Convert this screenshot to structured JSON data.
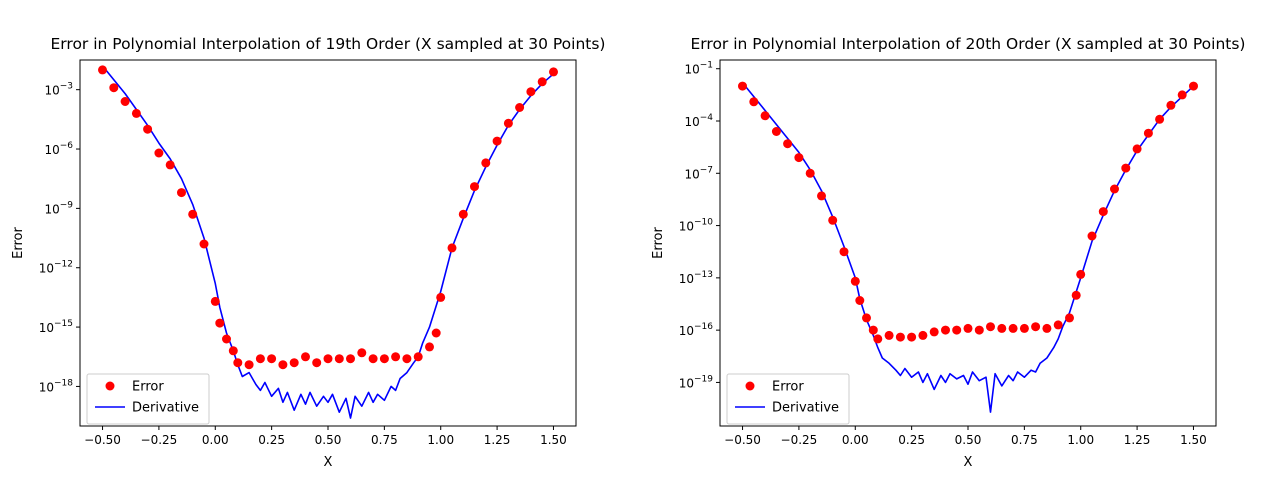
{
  "chart_data": [
    {
      "type": "scatter",
      "title": "Error in Polynomial Interpolation of 19th Order (X sampled at 30 Points)",
      "xlabel": "X",
      "ylabel": "Error",
      "yscale": "log",
      "xlim": [
        -0.6,
        1.6
      ],
      "ylim_log10": [
        -20,
        -1.5
      ],
      "xticks": [
        "−0.50",
        "−0.25",
        "0.00",
        "0.25",
        "0.50",
        "0.75",
        "1.00",
        "1.25",
        "1.50"
      ],
      "yticks": [
        {
          "base": "10",
          "exp": "−3",
          "log": -3
        },
        {
          "base": "10",
          "exp": "−6",
          "log": -6
        },
        {
          "base": "10",
          "exp": "−9",
          "log": -9
        },
        {
          "base": "10",
          "exp": "−12",
          "log": -12
        },
        {
          "base": "10",
          "exp": "−15",
          "log": -15
        },
        {
          "base": "10",
          "exp": "−18",
          "log": -18
        }
      ],
      "legend": {
        "position": "lower-left",
        "entries": [
          "Error",
          "Derivative"
        ]
      },
      "series": [
        {
          "name": "Error",
          "marker": "circle",
          "color": "#ff0000",
          "x": [
            -0.5,
            -0.45,
            -0.4,
            -0.35,
            -0.3,
            -0.25,
            -0.2,
            -0.15,
            -0.1,
            -0.05,
            0.0,
            0.02,
            0.05,
            0.08,
            0.1,
            0.15,
            0.2,
            0.25,
            0.3,
            0.35,
            0.4,
            0.45,
            0.5,
            0.55,
            0.6,
            0.65,
            0.7,
            0.75,
            0.8,
            0.85,
            0.9,
            0.95,
            0.98,
            1.0,
            1.05,
            1.1,
            1.15,
            1.2,
            1.25,
            1.3,
            1.35,
            1.4,
            1.45,
            1.5
          ],
          "log10_y": [
            -2.0,
            -2.9,
            -3.6,
            -4.2,
            -5.0,
            -6.2,
            -6.8,
            -8.2,
            -9.3,
            -10.8,
            -13.7,
            -14.8,
            -15.6,
            -16.2,
            -16.8,
            -16.9,
            -16.6,
            -16.6,
            -16.9,
            -16.8,
            -16.5,
            -16.8,
            -16.6,
            -16.6,
            -16.6,
            -16.3,
            -16.6,
            -16.6,
            -16.5,
            -16.6,
            -16.5,
            -16.0,
            -15.3,
            -13.5,
            -11.0,
            -9.3,
            -7.9,
            -6.7,
            -5.6,
            -4.7,
            -3.9,
            -3.1,
            -2.6,
            -2.1
          ]
        },
        {
          "name": "Derivative",
          "marker": "line",
          "color": "#0000ff",
          "x": [
            -0.5,
            -0.45,
            -0.4,
            -0.35,
            -0.3,
            -0.25,
            -0.2,
            -0.15,
            -0.1,
            -0.05,
            0.0,
            0.02,
            0.05,
            0.08,
            0.1,
            0.12,
            0.15,
            0.18,
            0.2,
            0.22,
            0.25,
            0.28,
            0.3,
            0.32,
            0.35,
            0.38,
            0.4,
            0.42,
            0.45,
            0.48,
            0.5,
            0.52,
            0.55,
            0.58,
            0.6,
            0.62,
            0.65,
            0.68,
            0.7,
            0.72,
            0.75,
            0.78,
            0.8,
            0.82,
            0.85,
            0.88,
            0.9,
            0.92,
            0.95,
            1.0,
            1.05,
            1.1,
            1.15,
            1.2,
            1.25,
            1.3,
            1.35,
            1.4,
            1.45,
            1.5
          ],
          "log10_y": [
            -1.8,
            -2.5,
            -3.2,
            -4.0,
            -4.8,
            -5.7,
            -6.5,
            -7.5,
            -8.8,
            -10.5,
            -12.8,
            -14.0,
            -15.3,
            -16.2,
            -16.9,
            -17.5,
            -17.3,
            -17.9,
            -18.2,
            -17.8,
            -18.5,
            -18.1,
            -18.8,
            -18.3,
            -19.2,
            -18.4,
            -18.9,
            -18.3,
            -19.0,
            -18.5,
            -18.8,
            -18.4,
            -19.3,
            -18.6,
            -19.6,
            -18.5,
            -19.0,
            -18.3,
            -18.8,
            -18.4,
            -18.7,
            -18.0,
            -18.2,
            -17.6,
            -17.3,
            -16.8,
            -16.5,
            -15.8,
            -15.0,
            -13.2,
            -11.0,
            -9.5,
            -8.1,
            -6.9,
            -5.8,
            -4.8,
            -4.0,
            -3.3,
            -2.7,
            -2.2
          ]
        }
      ]
    },
    {
      "type": "scatter",
      "title": "Error in Polynomial Interpolation of 20th Order (X sampled at 30 Points)",
      "xlabel": "X",
      "ylabel": "Error",
      "yscale": "log",
      "xlim": [
        -0.6,
        1.6
      ],
      "ylim_log10": [
        -21.5,
        -0.5
      ],
      "xticks": [
        "−0.50",
        "−0.25",
        "0.00",
        "0.25",
        "0.50",
        "0.75",
        "1.00",
        "1.25",
        "1.50"
      ],
      "yticks": [
        {
          "base": "10",
          "exp": "−1",
          "log": -1
        },
        {
          "base": "10",
          "exp": "−4",
          "log": -4
        },
        {
          "base": "10",
          "exp": "−7",
          "log": -7
        },
        {
          "base": "10",
          "exp": "−10",
          "log": -10
        },
        {
          "base": "10",
          "exp": "−13",
          "log": -13
        },
        {
          "base": "10",
          "exp": "−16",
          "log": -16
        },
        {
          "base": "10",
          "exp": "−19",
          "log": -19
        }
      ],
      "legend": {
        "position": "lower-left",
        "entries": [
          "Error",
          "Derivative"
        ]
      },
      "series": [
        {
          "name": "Error",
          "marker": "circle",
          "color": "#ff0000",
          "x": [
            -0.5,
            -0.45,
            -0.4,
            -0.35,
            -0.3,
            -0.25,
            -0.2,
            -0.15,
            -0.1,
            -0.05,
            0.0,
            0.02,
            0.05,
            0.08,
            0.1,
            0.15,
            0.2,
            0.25,
            0.3,
            0.35,
            0.4,
            0.45,
            0.5,
            0.55,
            0.6,
            0.65,
            0.7,
            0.75,
            0.8,
            0.85,
            0.9,
            0.95,
            0.98,
            1.0,
            1.05,
            1.1,
            1.15,
            1.2,
            1.25,
            1.3,
            1.35,
            1.4,
            1.45,
            1.5
          ],
          "log10_y": [
            -2.0,
            -2.9,
            -3.7,
            -4.6,
            -5.3,
            -6.1,
            -7.0,
            -8.3,
            -9.7,
            -11.5,
            -13.2,
            -14.3,
            -15.3,
            -16.0,
            -16.5,
            -16.3,
            -16.4,
            -16.4,
            -16.3,
            -16.1,
            -16.0,
            -16.0,
            -15.9,
            -16.0,
            -15.8,
            -15.9,
            -15.9,
            -15.9,
            -15.8,
            -15.9,
            -15.7,
            -15.3,
            -14.0,
            -12.8,
            -10.6,
            -9.2,
            -7.9,
            -6.7,
            -5.6,
            -4.7,
            -3.9,
            -3.1,
            -2.5,
            -2.0
          ]
        },
        {
          "name": "Derivative",
          "marker": "line",
          "color": "#0000ff",
          "x": [
            -0.5,
            -0.45,
            -0.4,
            -0.35,
            -0.3,
            -0.25,
            -0.2,
            -0.15,
            -0.1,
            -0.05,
            0.0,
            0.02,
            0.05,
            0.08,
            0.1,
            0.12,
            0.15,
            0.18,
            0.2,
            0.22,
            0.25,
            0.28,
            0.3,
            0.32,
            0.35,
            0.38,
            0.4,
            0.42,
            0.45,
            0.48,
            0.5,
            0.52,
            0.55,
            0.58,
            0.6,
            0.62,
            0.65,
            0.68,
            0.7,
            0.72,
            0.75,
            0.78,
            0.8,
            0.82,
            0.85,
            0.88,
            0.9,
            0.92,
            0.95,
            1.0,
            1.05,
            1.1,
            1.15,
            1.2,
            1.25,
            1.3,
            1.35,
            1.4,
            1.45,
            1.5
          ],
          "log10_y": [
            -1.8,
            -2.6,
            -3.4,
            -4.2,
            -5.0,
            -5.8,
            -6.8,
            -8.0,
            -9.5,
            -11.2,
            -13.0,
            -14.2,
            -15.4,
            -16.3,
            -17.0,
            -17.6,
            -17.9,
            -18.3,
            -18.6,
            -18.2,
            -18.7,
            -18.4,
            -19.0,
            -18.5,
            -19.4,
            -18.6,
            -19.0,
            -18.5,
            -18.8,
            -18.6,
            -19.1,
            -18.4,
            -18.9,
            -18.7,
            -20.7,
            -18.5,
            -19.2,
            -18.6,
            -18.9,
            -18.4,
            -18.7,
            -18.3,
            -18.4,
            -17.9,
            -17.6,
            -17.0,
            -16.5,
            -15.8,
            -15.0,
            -13.0,
            -10.9,
            -9.4,
            -8.0,
            -6.8,
            -5.7,
            -4.8,
            -3.9,
            -3.2,
            -2.6,
            -2.0
          ]
        }
      ]
    }
  ]
}
